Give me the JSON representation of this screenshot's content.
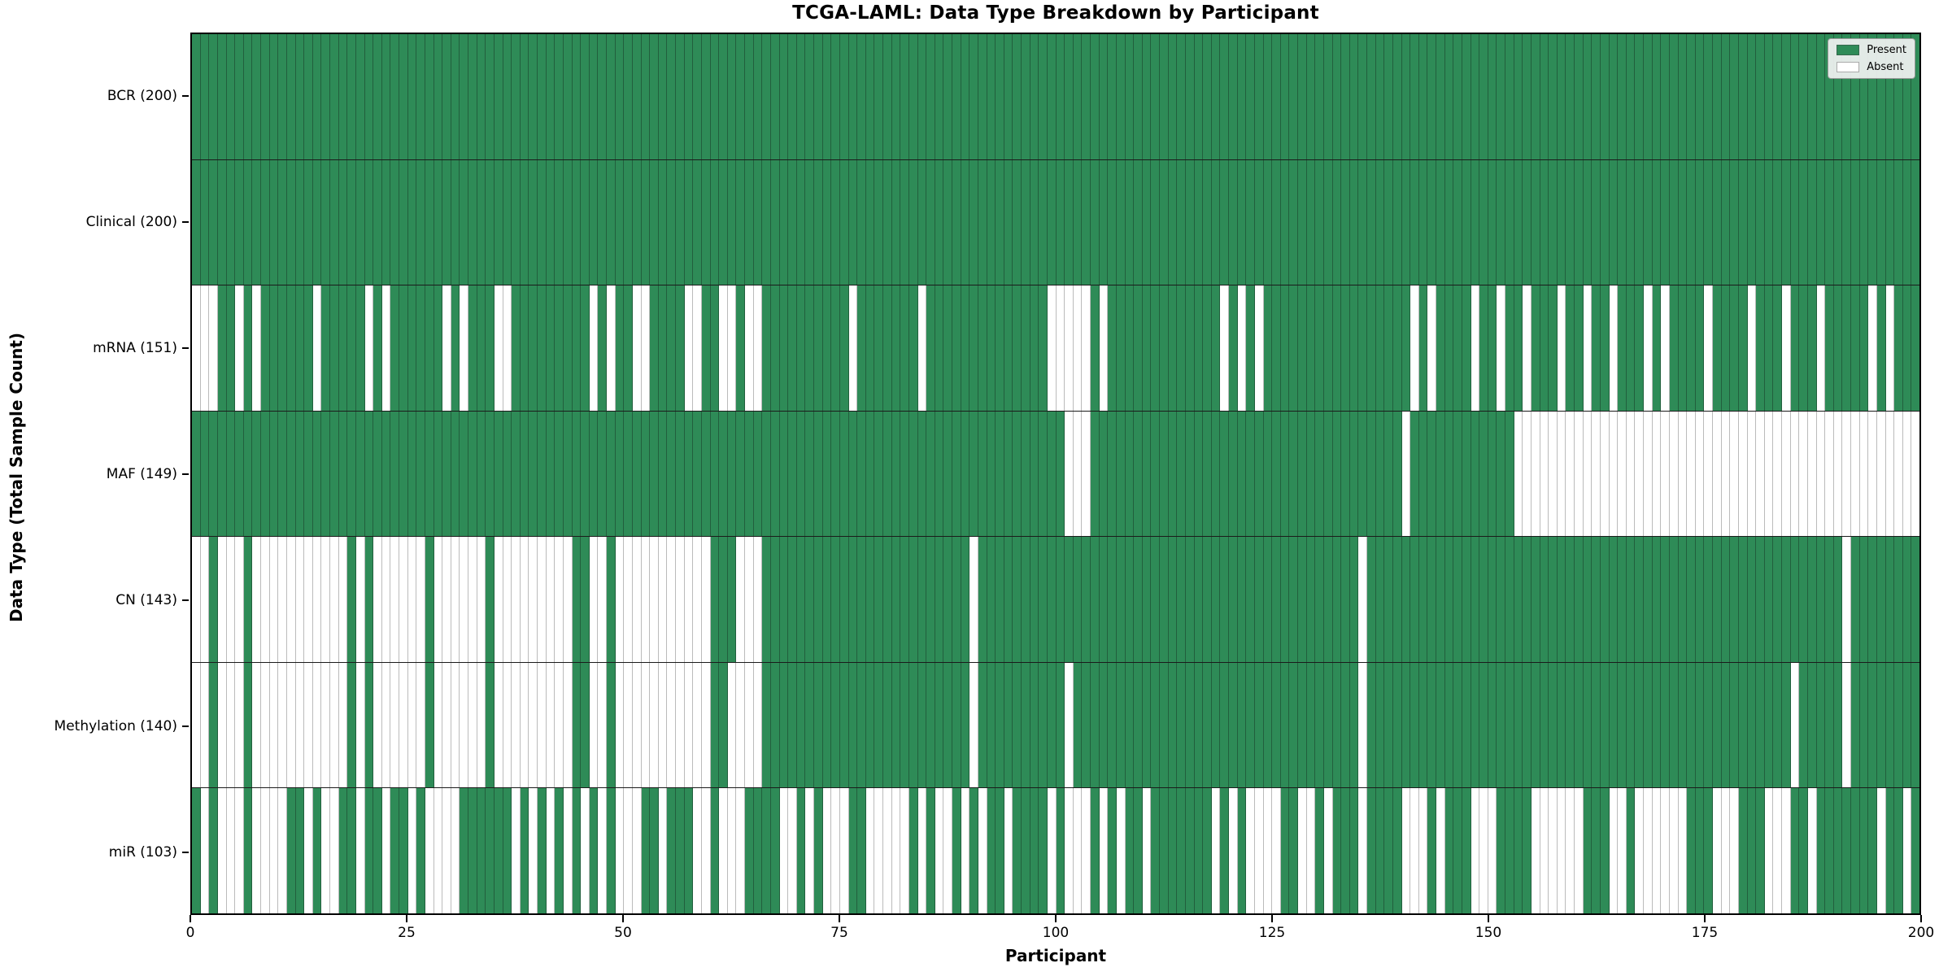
{
  "figure": {
    "title": "TCGA-LAML: Data Type Breakdown by Participant",
    "x_axis_label": "Participant",
    "y_axis_label": "Data Type (Total Sample Count)",
    "legend": {
      "present_label": "Present",
      "absent_label": "Absent"
    },
    "colors": {
      "present": "#2e8b57",
      "absent": "#ffffff",
      "row_divider": "#1b1b1b",
      "plot_border": "#000000",
      "legend_background": "#f2f2f2"
    }
  },
  "chart_data": {
    "type": "heatmap",
    "title": "TCGA-LAML: Data Type Breakdown by Participant",
    "xlabel": "Participant",
    "ylabel": "Data Type (Total Sample Count)",
    "x_range": [
      0,
      200
    ],
    "x_ticks": [
      0,
      25,
      50,
      75,
      100,
      125,
      150,
      175,
      200
    ],
    "grid": false,
    "legend_position": "upper right",
    "legend_entries": [
      "Present",
      "Absent"
    ],
    "cell_states": {
      "present": 1,
      "absent": 0
    },
    "rows": [
      {
        "label": "BCR (200)",
        "data_type": "BCR",
        "present_count": 200,
        "absent_participants": []
      },
      {
        "label": "Clinical (200)",
        "data_type": "Clinical",
        "present_count": 200,
        "absent_participants": []
      },
      {
        "label": "mRNA (151)",
        "data_type": "mRNA",
        "present_count": 151,
        "absent_participants": [
          0,
          1,
          2,
          5,
          7,
          14,
          20,
          22,
          29,
          31,
          35,
          36,
          46,
          48,
          51,
          52,
          57,
          58,
          61,
          62,
          64,
          65,
          76,
          84,
          99,
          100,
          101,
          102,
          103,
          105,
          119,
          121,
          123,
          141,
          143,
          148,
          151,
          154,
          158,
          161,
          164,
          168,
          170,
          175,
          180,
          184,
          188,
          194,
          196
        ]
      },
      {
        "label": "MAF (149)",
        "data_type": "MAF",
        "present_count": 149,
        "absent_participants": [
          101,
          102,
          103,
          140,
          153,
          154,
          155,
          156,
          157,
          158,
          159,
          160,
          161,
          162,
          163,
          164,
          165,
          166,
          167,
          168,
          169,
          170,
          171,
          172,
          173,
          174,
          175,
          176,
          177,
          178,
          179,
          180,
          181,
          182,
          183,
          184,
          185,
          186,
          187,
          188,
          189,
          190,
          191,
          192,
          193,
          194,
          195,
          196,
          197,
          198,
          199
        ]
      },
      {
        "label": "CN (143)",
        "data_type": "CN",
        "present_count": 143,
        "absent_participants": [
          0,
          1,
          3,
          4,
          5,
          7,
          8,
          9,
          10,
          11,
          12,
          13,
          14,
          15,
          16,
          17,
          19,
          21,
          22,
          23,
          24,
          25,
          26,
          28,
          29,
          30,
          31,
          32,
          33,
          35,
          36,
          37,
          38,
          39,
          40,
          41,
          42,
          43,
          46,
          47,
          49,
          50,
          51,
          52,
          53,
          54,
          55,
          56,
          57,
          58,
          59,
          63,
          64,
          65,
          90,
          135,
          191
        ]
      },
      {
        "label": "Methylation (140)",
        "data_type": "Methylation",
        "present_count": 140,
        "absent_participants": [
          0,
          1,
          3,
          4,
          5,
          7,
          8,
          9,
          10,
          11,
          12,
          13,
          14,
          15,
          16,
          17,
          19,
          21,
          22,
          23,
          24,
          25,
          26,
          28,
          29,
          30,
          31,
          32,
          33,
          35,
          36,
          37,
          38,
          39,
          40,
          41,
          42,
          43,
          46,
          47,
          49,
          50,
          51,
          52,
          53,
          54,
          55,
          56,
          57,
          58,
          59,
          62,
          63,
          64,
          65,
          90,
          101,
          135,
          185,
          191
        ]
      },
      {
        "label": "miR (103)",
        "data_type": "miR",
        "present_count": 103,
        "absent_participants": [
          1,
          3,
          4,
          5,
          7,
          8,
          9,
          10,
          13,
          15,
          16,
          19,
          22,
          25,
          27,
          28,
          29,
          30,
          37,
          39,
          41,
          43,
          45,
          47,
          49,
          50,
          51,
          54,
          58,
          59,
          61,
          62,
          63,
          68,
          69,
          71,
          73,
          74,
          75,
          78,
          79,
          80,
          81,
          82,
          84,
          86,
          87,
          89,
          91,
          94,
          99,
          101,
          102,
          103,
          105,
          107,
          110,
          118,
          120,
          122,
          123,
          124,
          125,
          128,
          129,
          131,
          135,
          140,
          141,
          142,
          144,
          148,
          149,
          150,
          155,
          156,
          157,
          158,
          159,
          160,
          164,
          165,
          167,
          168,
          169,
          170,
          171,
          172,
          176,
          177,
          178,
          182,
          183,
          184,
          187,
          195,
          198
        ]
      }
    ],
    "n_participants": 200
  }
}
